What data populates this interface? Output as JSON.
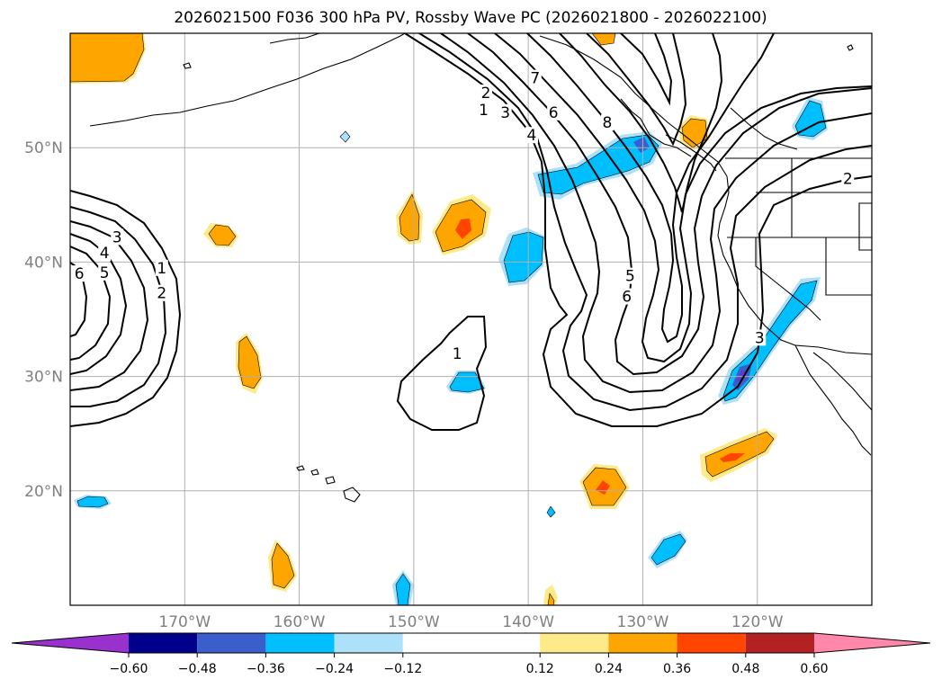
{
  "chart_data": {
    "type": "contour-map",
    "title": "2026021500 F036 300 hPa PV, Rossby Wave PC (2026021800 - 2026022100)",
    "lon_range": [
      -180,
      -110
    ],
    "lat_range": [
      10,
      60
    ],
    "grid": true,
    "x_ticks": [
      {
        "lon": -170,
        "label": "170°W"
      },
      {
        "lon": -160,
        "label": "160°W"
      },
      {
        "lon": -150,
        "label": "150°W"
      },
      {
        "lon": -140,
        "label": "140°W"
      },
      {
        "lon": -130,
        "label": "130°W"
      },
      {
        "lon": -120,
        "label": "120°W"
      }
    ],
    "y_ticks": [
      {
        "lat": 20,
        "label": "20°N"
      },
      {
        "lat": 30,
        "label": "30°N"
      },
      {
        "lat": 40,
        "label": "40°N"
      },
      {
        "lat": 50,
        "label": "50°N"
      }
    ],
    "colorbar": {
      "orientation": "horizontal",
      "extend": "both",
      "boundaries": [
        -0.72,
        -0.6,
        -0.48,
        -0.36,
        -0.24,
        -0.12,
        0.12,
        0.24,
        0.36,
        0.48,
        0.6,
        0.72
      ],
      "colors": [
        "#9932CC",
        "#00008B",
        "#3A5FCD",
        "#00BFFF",
        "#ADE1F9",
        "#FFFFFF",
        "#FFEA8A",
        "#FFA500",
        "#FF4500",
        "#B22222",
        "#FF88AA"
      ],
      "tick_labels": [
        "−0.60",
        "−0.48",
        "−0.36",
        "−0.24",
        "−0.12",
        "0.12",
        "0.24",
        "0.36",
        "0.48",
        "0.60"
      ]
    },
    "contour_labels": [
      {
        "text": "1",
        "lon": -172,
        "lat": 39.5
      },
      {
        "text": "2",
        "lon": -172,
        "lat": 37.3
      },
      {
        "text": "3",
        "lon": -175.9,
        "lat": 42.2
      },
      {
        "text": "4",
        "lon": -177,
        "lat": 40.8
      },
      {
        "text": "5",
        "lon": -177,
        "lat": 39.1
      },
      {
        "text": "6",
        "lon": -179.2,
        "lat": 39.0
      },
      {
        "text": "1",
        "lon": -146.2,
        "lat": 32.0
      },
      {
        "text": "1",
        "lon": -143.9,
        "lat": 53.3
      },
      {
        "text": "2",
        "lon": -143.7,
        "lat": 54.8
      },
      {
        "text": "3",
        "lon": -142,
        "lat": 53.1
      },
      {
        "text": "4",
        "lon": -139.7,
        "lat": 51.1
      },
      {
        "text": "6",
        "lon": -137.8,
        "lat": 53.1
      },
      {
        "text": "7",
        "lon": -139.4,
        "lat": 56.1
      },
      {
        "text": "8",
        "lon": -133.1,
        "lat": 52.2
      },
      {
        "text": "5",
        "lon": -131.1,
        "lat": 38.8
      },
      {
        "text": "6",
        "lon": -131.4,
        "lat": 37.0
      },
      {
        "text": "3",
        "lon": -119.8,
        "lat": 33.4
      },
      {
        "text": "2",
        "lon": -112.1,
        "lat": 47.3
      }
    ],
    "pc_anomaly_patches": [
      {
        "lon": -176,
        "lat": 56.5,
        "value": 0.3
      },
      {
        "lon": -167,
        "lat": 42.2,
        "value": 0.3
      },
      {
        "lon": -164.5,
        "lat": 31.3,
        "value": 0.3
      },
      {
        "lon": -149,
        "lat": 43.2,
        "value": 0.3
      },
      {
        "lon": -145.5,
        "lat": 43.0,
        "value": 0.4
      },
      {
        "lon": -141,
        "lat": 40.2,
        "value": -0.3
      },
      {
        "lon": -144.3,
        "lat": 29.5,
        "value": -0.3
      },
      {
        "lon": -134,
        "lat": 47.5,
        "value": -0.3
      },
      {
        "lon": -126,
        "lat": 51.3,
        "value": 0.3
      },
      {
        "lon": -115.5,
        "lat": 52.6,
        "value": -0.3
      },
      {
        "lon": -121,
        "lat": 30.5,
        "value": -0.4
      },
      {
        "lon": -117.5,
        "lat": 36.8,
        "value": -0.3
      },
      {
        "lon": -133.5,
        "lat": 20.4,
        "value": 0.4
      },
      {
        "lon": -121,
        "lat": 23.3,
        "value": 0.4
      },
      {
        "lon": -176.7,
        "lat": 18.9,
        "value": -0.3
      },
      {
        "lon": -127.3,
        "lat": 15.0,
        "value": -0.3
      },
      {
        "lon": -162.3,
        "lat": 13.1,
        "value": 0.3
      },
      {
        "lon": -150,
        "lat": 11.2,
        "value": -0.3
      },
      {
        "lon": -138.3,
        "lat": 18.0,
        "value": -0.2
      },
      {
        "lon": -141.8,
        "lat": 10.3,
        "value": 0.3
      },
      {
        "lon": -153.2,
        "lat": 50.8,
        "value": -0.2
      },
      {
        "lon": -135.5,
        "lat": 59.6,
        "value": 0.3
      }
    ]
  }
}
